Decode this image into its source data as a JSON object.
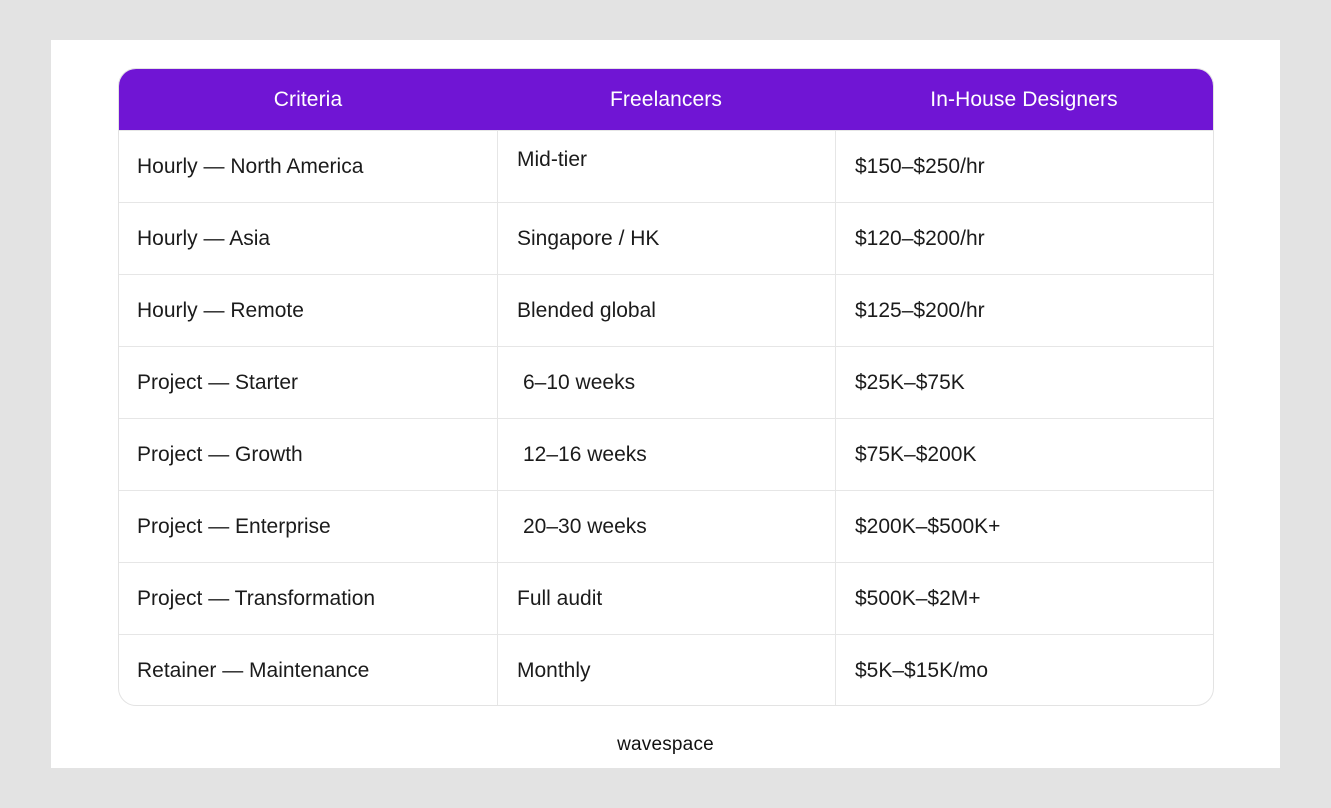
{
  "table": {
    "headers": [
      "Criteria",
      "Freelancers",
      "In-House Designers"
    ],
    "rows": [
      {
        "criteria": "Hourly — North America",
        "freelancers": "Mid-tier",
        "inhouse": "$150–$250/hr"
      },
      {
        "criteria": "Hourly — Asia",
        "freelancers": "Singapore / HK",
        "inhouse": "$120–$200/hr"
      },
      {
        "criteria": "Hourly — Remote",
        "freelancers": "Blended global",
        "inhouse": "$125–$200/hr"
      },
      {
        "criteria": "Project — Starter",
        "freelancers": "6–10 weeks",
        "inhouse": "$25K–$75K"
      },
      {
        "criteria": "Project — Growth",
        "freelancers": "12–16 weeks",
        "inhouse": "$75K–$200K"
      },
      {
        "criteria": "Project — Enterprise",
        "freelancers": "20–30 weeks",
        "inhouse": "$200K–$500K+"
      },
      {
        "criteria": "Project — Transformation",
        "freelancers": "Full audit",
        "inhouse": "$500K–$2M+"
      },
      {
        "criteria": "Retainer — Maintenance",
        "freelancers": "Monthly",
        "inhouse": "$5K–$15K/mo"
      }
    ]
  },
  "brand": {
    "logo_text": "wavespace"
  },
  "colors": {
    "header_bg": "#7015d4",
    "header_text": "#ffffff",
    "page_bg": "#e3e3e3",
    "card_bg": "#ffffff",
    "border": "#e6e6e6",
    "text": "#1b1b1b"
  }
}
